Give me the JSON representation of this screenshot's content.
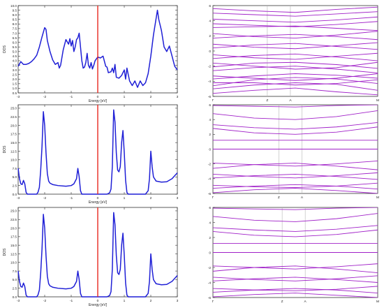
{
  "chart_data": [
    {
      "type": "line",
      "panel": "dos-1",
      "xlabel": "Energy [eV]",
      "ylabel": "DOS",
      "xlim": [
        -3,
        3
      ],
      "ylim": [
        0.5,
        10.0
      ],
      "xticks": [
        "-3",
        "-2",
        "-1",
        "0",
        "1",
        "2",
        "3"
      ],
      "yticks": [
        "0.5",
        "1.0",
        "1.5",
        "2.0",
        "2.5",
        "3.0",
        "3.5",
        "4.0",
        "4.5",
        "5.0",
        "5.5",
        "6.0",
        "6.5",
        "7.0",
        "7.5",
        "8.0",
        "8.5",
        "9.0",
        "9.5",
        "10.0"
      ],
      "ytick_values": [
        0.5,
        1.0,
        1.5,
        2.0,
        2.5,
        3.0,
        3.5,
        4.0,
        4.5,
        5.0,
        5.5,
        6.0,
        6.5,
        7.0,
        7.5,
        8.0,
        8.5,
        9.0,
        9.5,
        10.0
      ],
      "series_color": "#1f1fd6",
      "fermi_level": 0,
      "fermi_color": "#e8281e",
      "x": [
        -3.0,
        -2.9,
        -2.8,
        -2.7,
        -2.6,
        -2.5,
        -2.4,
        -2.3,
        -2.2,
        -2.1,
        -2.0,
        -1.95,
        -1.9,
        -1.8,
        -1.7,
        -1.6,
        -1.5,
        -1.45,
        -1.4,
        -1.3,
        -1.2,
        -1.1,
        -1.05,
        -1.0,
        -0.95,
        -0.9,
        -0.85,
        -0.8,
        -0.75,
        -0.7,
        -0.6,
        -0.55,
        -0.5,
        -0.45,
        -0.4,
        -0.35,
        -0.3,
        -0.25,
        -0.2,
        -0.15,
        -0.1,
        0.0,
        0.1,
        0.2,
        0.3,
        0.35,
        0.4,
        0.5,
        0.55,
        0.6,
        0.65,
        0.7,
        0.8,
        0.9,
        1.0,
        1.05,
        1.1,
        1.2,
        1.3,
        1.4,
        1.5,
        1.6,
        1.7,
        1.8,
        1.9,
        2.0,
        2.1,
        2.2,
        2.25,
        2.3,
        2.4,
        2.5,
        2.6,
        2.7,
        2.8,
        2.9,
        3.0
      ],
      "y": [
        3.4,
        3.9,
        3.6,
        3.6,
        3.7,
        3.9,
        4.2,
        4.6,
        5.5,
        6.6,
        7.6,
        7.4,
        6.2,
        5.0,
        4.1,
        3.6,
        3.8,
        3.2,
        3.5,
        5.2,
        6.3,
        5.8,
        6.4,
        5.6,
        6.2,
        5.0,
        5.5,
        6.3,
        6.5,
        7.0,
        4.0,
        3.2,
        3.3,
        3.8,
        4.8,
        3.5,
        3.2,
        3.8,
        3.1,
        3.5,
        4.0,
        4.4,
        4.3,
        4.5,
        3.4,
        3.3,
        2.7,
        2.8,
        3.2,
        2.7,
        3.6,
        2.2,
        2.1,
        2.4,
        3.0,
        2.0,
        3.2,
        1.8,
        1.3,
        1.8,
        1.1,
        1.8,
        1.3,
        1.6,
        2.6,
        4.5,
        6.8,
        8.6,
        9.5,
        8.5,
        7.3,
        5.5,
        5.0,
        5.6,
        4.5,
        3.4,
        3.0
      ]
    },
    {
      "type": "line",
      "panel": "dos-2",
      "xlabel": "Energy [eV]",
      "ylabel": "DOS",
      "xlim": [
        -3,
        3
      ],
      "ylim": [
        0,
        26
      ],
      "xticks": [
        "-3",
        "-2",
        "-1",
        "0",
        "1",
        "2",
        "3"
      ],
      "yticks": [
        "0.0",
        "2.5",
        "5.0",
        "7.5",
        "10.0",
        "12.5",
        "15.0",
        "17.5",
        "20.0",
        "22.5",
        "25.0"
      ],
      "ytick_values": [
        0,
        2.5,
        5,
        7.5,
        10,
        12.5,
        15,
        17.5,
        20,
        22.5,
        25
      ],
      "series_color": "#1f1fd6",
      "fermi_level": 0,
      "fermi_color": "#e8281e",
      "x": [
        -3.0,
        -2.95,
        -2.9,
        -2.85,
        -2.8,
        -2.75,
        -2.7,
        -2.65,
        -2.3,
        -2.25,
        -2.2,
        -2.15,
        -2.1,
        -2.05,
        -2.0,
        -1.95,
        -1.9,
        -1.85,
        -1.8,
        -1.7,
        -1.5,
        -1.2,
        -1.0,
        -0.9,
        -0.8,
        -0.75,
        -0.7,
        -0.65,
        -0.6,
        -0.55,
        -0.5,
        -0.4,
        -0.2,
        0.0,
        0.2,
        0.35,
        0.45,
        0.5,
        0.55,
        0.6,
        0.65,
        0.7,
        0.75,
        0.8,
        0.85,
        0.9,
        0.95,
        1.0,
        1.05,
        1.1,
        1.15,
        1.2,
        1.3,
        1.5,
        1.8,
        1.9,
        1.95,
        2.0,
        2.05,
        2.1,
        2.2,
        2.4,
        2.6,
        2.8,
        3.0
      ],
      "y": [
        7.5,
        4.5,
        3.0,
        2.8,
        4.0,
        3.0,
        0.5,
        0.0,
        0.0,
        0.6,
        2.0,
        7.0,
        14.0,
        24.0,
        20.0,
        12.0,
        6.0,
        3.8,
        3.2,
        2.8,
        2.5,
        2.3,
        2.5,
        3.0,
        4.5,
        7.5,
        5.0,
        1.0,
        0.0,
        0.0,
        0.0,
        0.0,
        0.0,
        0.0,
        0.0,
        0.0,
        0.4,
        1.5,
        8.0,
        24.5,
        21.0,
        12.0,
        7.0,
        6.5,
        8.0,
        15.0,
        18.5,
        12.0,
        4.0,
        0.5,
        0.0,
        0.0,
        0.0,
        0.0,
        0.0,
        1.0,
        4.5,
        12.5,
        8.0,
        5.0,
        3.8,
        3.5,
        3.6,
        4.5,
        6.2
      ]
    },
    {
      "type": "line",
      "panel": "dos-3",
      "xlabel": "Energy [eV]",
      "ylabel": "DOS",
      "xlim": [
        -3,
        3
      ],
      "ylim": [
        0,
        26
      ],
      "xticks": [
        "-3",
        "-2",
        "-1",
        "0",
        "1",
        "2",
        "3"
      ],
      "yticks": [
        "0.0",
        "2.5",
        "5.0",
        "7.5",
        "10.0",
        "12.5",
        "15.0",
        "17.5",
        "20.0",
        "22.5",
        "25.0"
      ],
      "ytick_values": [
        0,
        2.5,
        5,
        7.5,
        10,
        12.5,
        15,
        17.5,
        20,
        22.5,
        25
      ],
      "series_color": "#1f1fd6",
      "fermi_level": 0,
      "fermi_color": "#e8281e",
      "x": [
        -3.0,
        -2.95,
        -2.9,
        -2.85,
        -2.8,
        -2.75,
        -2.7,
        -2.65,
        -2.3,
        -2.25,
        -2.2,
        -2.15,
        -2.1,
        -2.05,
        -2.0,
        -1.95,
        -1.9,
        -1.85,
        -1.8,
        -1.7,
        -1.5,
        -1.2,
        -1.0,
        -0.9,
        -0.8,
        -0.75,
        -0.7,
        -0.65,
        -0.6,
        -0.55,
        -0.5,
        -0.4,
        -0.2,
        0.0,
        0.2,
        0.35,
        0.45,
        0.5,
        0.55,
        0.6,
        0.65,
        0.7,
        0.75,
        0.8,
        0.85,
        0.9,
        0.95,
        1.0,
        1.05,
        1.1,
        1.15,
        1.2,
        1.3,
        1.5,
        1.8,
        1.9,
        1.95,
        2.0,
        2.05,
        2.1,
        2.2,
        2.4,
        2.6,
        2.8,
        3.0
      ],
      "y": [
        7.5,
        4.5,
        3.0,
        2.8,
        4.0,
        3.0,
        0.5,
        0.0,
        0.0,
        0.6,
        2.0,
        7.0,
        14.0,
        24.0,
        20.0,
        12.0,
        6.0,
        3.8,
        3.2,
        2.8,
        2.5,
        2.3,
        2.5,
        3.0,
        4.5,
        7.5,
        5.0,
        1.0,
        0.0,
        0.0,
        0.0,
        0.0,
        0.0,
        0.0,
        0.0,
        0.0,
        0.4,
        1.5,
        8.0,
        24.5,
        21.0,
        12.0,
        7.0,
        6.5,
        8.0,
        15.0,
        18.5,
        12.0,
        4.0,
        0.5,
        0.0,
        0.0,
        0.0,
        0.0,
        0.0,
        1.0,
        4.5,
        12.5,
        8.0,
        5.0,
        3.8,
        3.5,
        3.6,
        4.5,
        6.2
      ]
    },
    {
      "type": "line",
      "panel": "bands-1",
      "ylim": [
        -6,
        6
      ],
      "yticks": [
        "-6",
        "-4",
        "-2",
        "0",
        "2",
        "4",
        "6"
      ],
      "ytick_values": [
        -6,
        -4,
        -2,
        0,
        2,
        4,
        6
      ],
      "kpoint_labels": [
        "Γ",
        "Z",
        "A",
        "M"
      ],
      "kpoint_positions": [
        0,
        0.33,
        0.47,
        1.0
      ],
      "series_color": "#a020c8",
      "bands": [
        [
          -5.0,
          -4.5,
          -4.2,
          -4.4,
          -5.2
        ],
        [
          -4.6,
          -3.8,
          -3.5,
          -3.7,
          -4.3
        ],
        [
          -4.2,
          -4.2,
          -4.5,
          -4.3,
          -3.8
        ],
        [
          -3.7,
          -3.3,
          -3.0,
          -3.2,
          -3.6
        ],
        [
          -3.3,
          -3.6,
          -3.9,
          -3.6,
          -3.0
        ],
        [
          -2.6,
          -2.2,
          -2.0,
          -2.4,
          -2.9
        ],
        [
          -2.1,
          -1.6,
          -1.5,
          -1.8,
          -2.3
        ],
        [
          -1.6,
          -2.0,
          -2.4,
          -2.2,
          -1.5
        ],
        [
          -1.0,
          -0.6,
          -0.4,
          -0.8,
          -1.3
        ],
        [
          -0.5,
          -0.9,
          -1.1,
          -0.7,
          -0.3
        ],
        [
          0.4,
          0.8,
          1.0,
          0.6,
          0.2
        ],
        [
          0.9,
          0.5,
          0.3,
          0.7,
          1.1
        ],
        [
          1.7,
          2.0,
          2.2,
          1.9,
          1.5
        ],
        [
          2.3,
          1.9,
          1.7,
          2.1,
          2.6
        ],
        [
          3.1,
          3.2,
          3.3,
          3.0,
          2.7
        ],
        [
          3.6,
          3.4,
          3.2,
          3.5,
          3.9
        ],
        [
          4.2,
          4.0,
          3.8,
          4.1,
          4.5
        ],
        [
          5.0,
          4.8,
          4.6,
          4.9,
          5.2
        ],
        [
          5.6,
          5.3,
          5.1,
          5.5,
          5.8
        ],
        [
          -5.6,
          -5.2,
          -4.9,
          -5.4,
          -5.8
        ]
      ]
    },
    {
      "type": "line",
      "panel": "bands-2",
      "ylim": [
        -6,
        6
      ],
      "yticks": [
        "-6",
        "-4",
        "-2",
        "0",
        "2",
        "4",
        "6"
      ],
      "ytick_values": [
        -6,
        -4,
        -2,
        0,
        2,
        4,
        6
      ],
      "kpoint_labels": [
        "Γ",
        "Z",
        "A",
        "M"
      ],
      "kpoint_positions": [
        0,
        0.4,
        0.54,
        1.0
      ],
      "series_color": "#a020c8",
      "bands": [
        [
          -5.9,
          -5.5,
          -5.3,
          -5.6,
          -6.0
        ],
        [
          -5.3,
          -5.0,
          -4.8,
          -5.0,
          -5.4
        ],
        [
          -4.9,
          -5.1,
          -5.2,
          -5.0,
          -4.6
        ],
        [
          -3.9,
          -3.6,
          -3.4,
          -3.7,
          -4.1
        ],
        [
          -3.4,
          -3.7,
          -3.9,
          -3.6,
          -3.2
        ],
        [
          -2.6,
          -2.1,
          -1.9,
          -2.3,
          -2.8
        ],
        [
          -1.9,
          -2.1,
          -2.3,
          -2.0,
          -1.6
        ],
        [
          0.0,
          0.0,
          0.0,
          0.0,
          0.0
        ],
        [
          1.2,
          1.2,
          1.2,
          1.2,
          1.2
        ],
        [
          2.8,
          2.2,
          2.0,
          2.3,
          3.0
        ],
        [
          3.3,
          2.9,
          2.7,
          3.0,
          3.6
        ],
        [
          4.8,
          4.2,
          4.0,
          4.4,
          5.2
        ],
        [
          5.9,
          5.8,
          5.7,
          5.9,
          6.0
        ]
      ]
    },
    {
      "type": "line",
      "panel": "bands-3",
      "ylim": [
        -6,
        6
      ],
      "yticks": [
        "-6",
        "-4",
        "-2",
        "0",
        "2",
        "4",
        "6"
      ],
      "ytick_values": [
        -6,
        -4,
        -2,
        0,
        2,
        4,
        6
      ],
      "kpoint_labels": [
        "Γ",
        "Z",
        "A",
        "M"
      ],
      "kpoint_positions": [
        0,
        0.42,
        0.56,
        1.0
      ],
      "series_color": "#a020c8",
      "bands": [
        [
          -5.9,
          -5.6,
          -5.4,
          -5.7,
          -6.0
        ],
        [
          -5.3,
          -5.0,
          -4.8,
          -5.0,
          -5.4
        ],
        [
          -4.8,
          -5.0,
          -5.1,
          -4.9,
          -4.5
        ],
        [
          -3.8,
          -3.5,
          -3.3,
          -3.6,
          -4.0
        ],
        [
          -3.3,
          -3.6,
          -3.8,
          -3.5,
          -3.1
        ],
        [
          -2.5,
          -2.0,
          -1.8,
          -2.2,
          -2.7
        ],
        [
          -1.8,
          -2.0,
          -2.2,
          -1.9,
          -1.5
        ],
        [
          0.0,
          0.0,
          0.0,
          0.0,
          0.0
        ],
        [
          1.2,
          1.2,
          1.2,
          1.2,
          1.2
        ],
        [
          2.8,
          2.3,
          2.1,
          2.4,
          3.0
        ],
        [
          3.3,
          3.0,
          2.8,
          3.1,
          3.6
        ],
        [
          4.8,
          4.3,
          4.1,
          4.5,
          5.2
        ],
        [
          5.9,
          5.8,
          5.7,
          5.9,
          6.0
        ]
      ]
    }
  ]
}
